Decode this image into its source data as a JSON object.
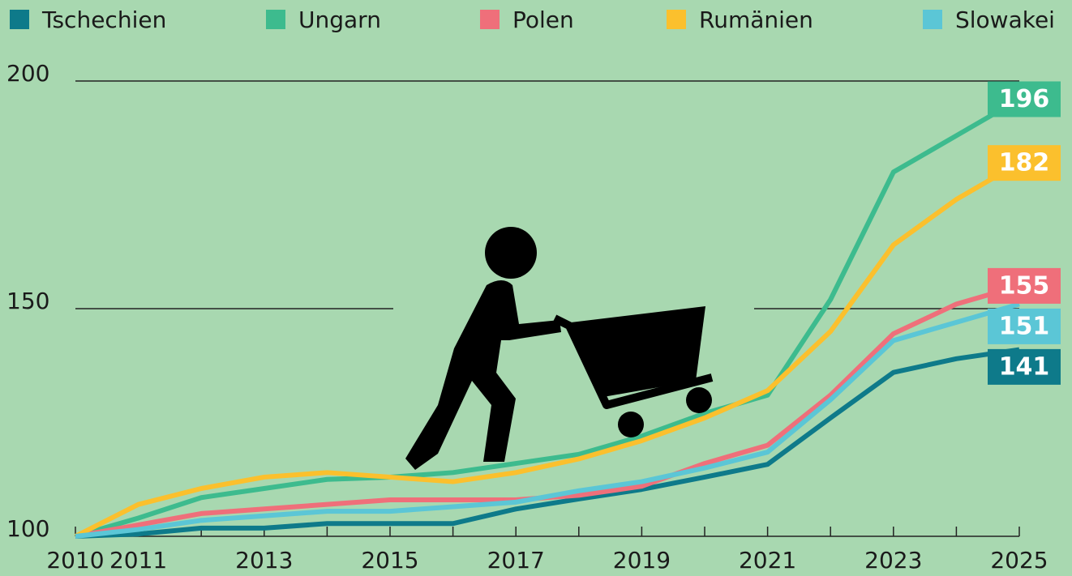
{
  "chart_data": {
    "type": "line",
    "x": [
      2010,
      2011,
      2012,
      2013,
      2014,
      2015,
      2016,
      2017,
      2018,
      2019,
      2020,
      2021,
      2022,
      2023,
      2024,
      2025
    ],
    "series": [
      {
        "name": "Tschechien",
        "color": "#0e7a8a",
        "values": [
          100,
          100.5,
          101.8,
          101.8,
          102.8,
          102.8,
          102.8,
          106,
          108.2,
          110.3,
          113,
          115.8,
          126,
          136,
          139,
          141
        ]
      },
      {
        "name": "Ungarn",
        "color": "#3dbb8e",
        "values": [
          100,
          104,
          108.5,
          110.5,
          112.5,
          113,
          114,
          116,
          118,
          122,
          127,
          131,
          152,
          180,
          188,
          196
        ]
      },
      {
        "name": "Polen",
        "color": "#ef6f7a",
        "values": [
          100,
          102.5,
          105,
          106,
          107,
          108,
          108,
          108,
          109,
          111,
          116,
          120,
          131,
          144.5,
          151,
          155
        ]
      },
      {
        "name": "Rumänien",
        "color": "#fbc02d",
        "values": [
          100,
          107,
          110.5,
          113,
          114,
          113,
          112,
          114,
          117,
          121,
          126,
          132,
          145,
          164,
          174,
          182
        ]
      },
      {
        "name": "Slowakei",
        "color": "#5bc6d6",
        "values": [
          100,
          101.5,
          103.5,
          104.5,
          105.5,
          105.5,
          106.5,
          107.5,
          110,
          112,
          115,
          118.5,
          130,
          143,
          147,
          151
        ]
      }
    ],
    "xlim": [
      2010,
      2025
    ],
    "xticks": [
      2010,
      2011,
      2013,
      2015,
      2017,
      2019,
      2021,
      2023,
      2025
    ],
    "xminor_ticks": [
      2012,
      2014,
      2016,
      2018,
      2020,
      2022,
      2024
    ],
    "ylim": [
      100,
      200
    ],
    "yticks": [
      100,
      150,
      200
    ],
    "grid": true,
    "legend": "top"
  }
}
